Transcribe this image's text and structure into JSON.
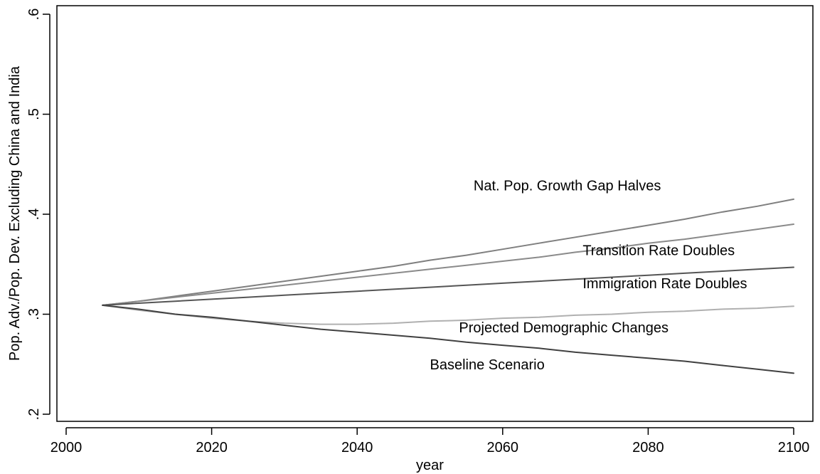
{
  "chart_data": {
    "type": "line",
    "xlabel": "year",
    "ylabel": "Pop. Adv./Pop. Dev. Excluding China and India",
    "xlim": [
      2000,
      2100
    ],
    "ylim": [
      0.2,
      0.6
    ],
    "x_ticks": [
      2000,
      2020,
      2040,
      2060,
      2080,
      2100
    ],
    "x_tick_labels": [
      "2000",
      "2020",
      "2040",
      "2060",
      "2080",
      "2100"
    ],
    "y_ticks": [
      0.2,
      0.3,
      0.4,
      0.5,
      0.6
    ],
    "y_tick_labels": [
      ".2",
      ".3",
      ".4",
      ".5",
      ".6"
    ],
    "grid": false,
    "legend": "none",
    "x": [
      2005,
      2010,
      2015,
      2020,
      2025,
      2030,
      2035,
      2040,
      2045,
      2050,
      2055,
      2060,
      2065,
      2070,
      2075,
      2080,
      2085,
      2090,
      2095,
      2100
    ],
    "series": [
      {
        "name": "Nat. Pop. Growth Gap Halves",
        "color": "#7f7f7f",
        "values": [
          0.309,
          0.313,
          0.318,
          0.323,
          0.328,
          0.333,
          0.338,
          0.343,
          0.348,
          0.354,
          0.359,
          0.365,
          0.371,
          0.377,
          0.383,
          0.389,
          0.395,
          0.402,
          0.408,
          0.415
        ]
      },
      {
        "name": "Transition Rate Doubles",
        "color": "#8a8a8a",
        "values": [
          0.309,
          0.313,
          0.317,
          0.321,
          0.325,
          0.329,
          0.333,
          0.337,
          0.341,
          0.345,
          0.349,
          0.353,
          0.357,
          0.362,
          0.366,
          0.371,
          0.375,
          0.38,
          0.385,
          0.39
        ]
      },
      {
        "name": "Immigration Rate Doubles",
        "color": "#555555",
        "values": [
          0.309,
          0.311,
          0.313,
          0.315,
          0.317,
          0.319,
          0.321,
          0.323,
          0.325,
          0.327,
          0.329,
          0.331,
          0.333,
          0.335,
          0.337,
          0.339,
          0.341,
          0.343,
          0.345,
          0.347
        ]
      },
      {
        "name": "Projected Demographic Changes",
        "color": "#b0b0b0",
        "values": [
          0.309,
          0.304,
          0.3,
          0.296,
          0.293,
          0.291,
          0.29,
          0.29,
          0.291,
          0.293,
          0.294,
          0.296,
          0.297,
          0.299,
          0.3,
          0.302,
          0.303,
          0.305,
          0.306,
          0.308
        ]
      },
      {
        "name": "Baseline Scenario",
        "color": "#404040",
        "values": [
          0.309,
          0.305,
          0.3,
          0.297,
          0.293,
          0.289,
          0.285,
          0.282,
          0.279,
          0.276,
          0.272,
          0.269,
          0.266,
          0.262,
          0.259,
          0.256,
          0.253,
          0.249,
          0.245,
          0.241
        ]
      }
    ],
    "annotations": [
      {
        "text": "Nat. Pop. Growth Gap Halves",
        "x": 2056,
        "y": 0.424
      },
      {
        "text": "Transition Rate Doubles",
        "x": 2071,
        "y": 0.359
      },
      {
        "text": "Immigration Rate Doubles",
        "x": 2071,
        "y": 0.326
      },
      {
        "text": "Projected Demographic Changes",
        "x": 2054,
        "y": 0.282
      },
      {
        "text": "Baseline Scenario",
        "x": 2050,
        "y": 0.245
      }
    ]
  }
}
